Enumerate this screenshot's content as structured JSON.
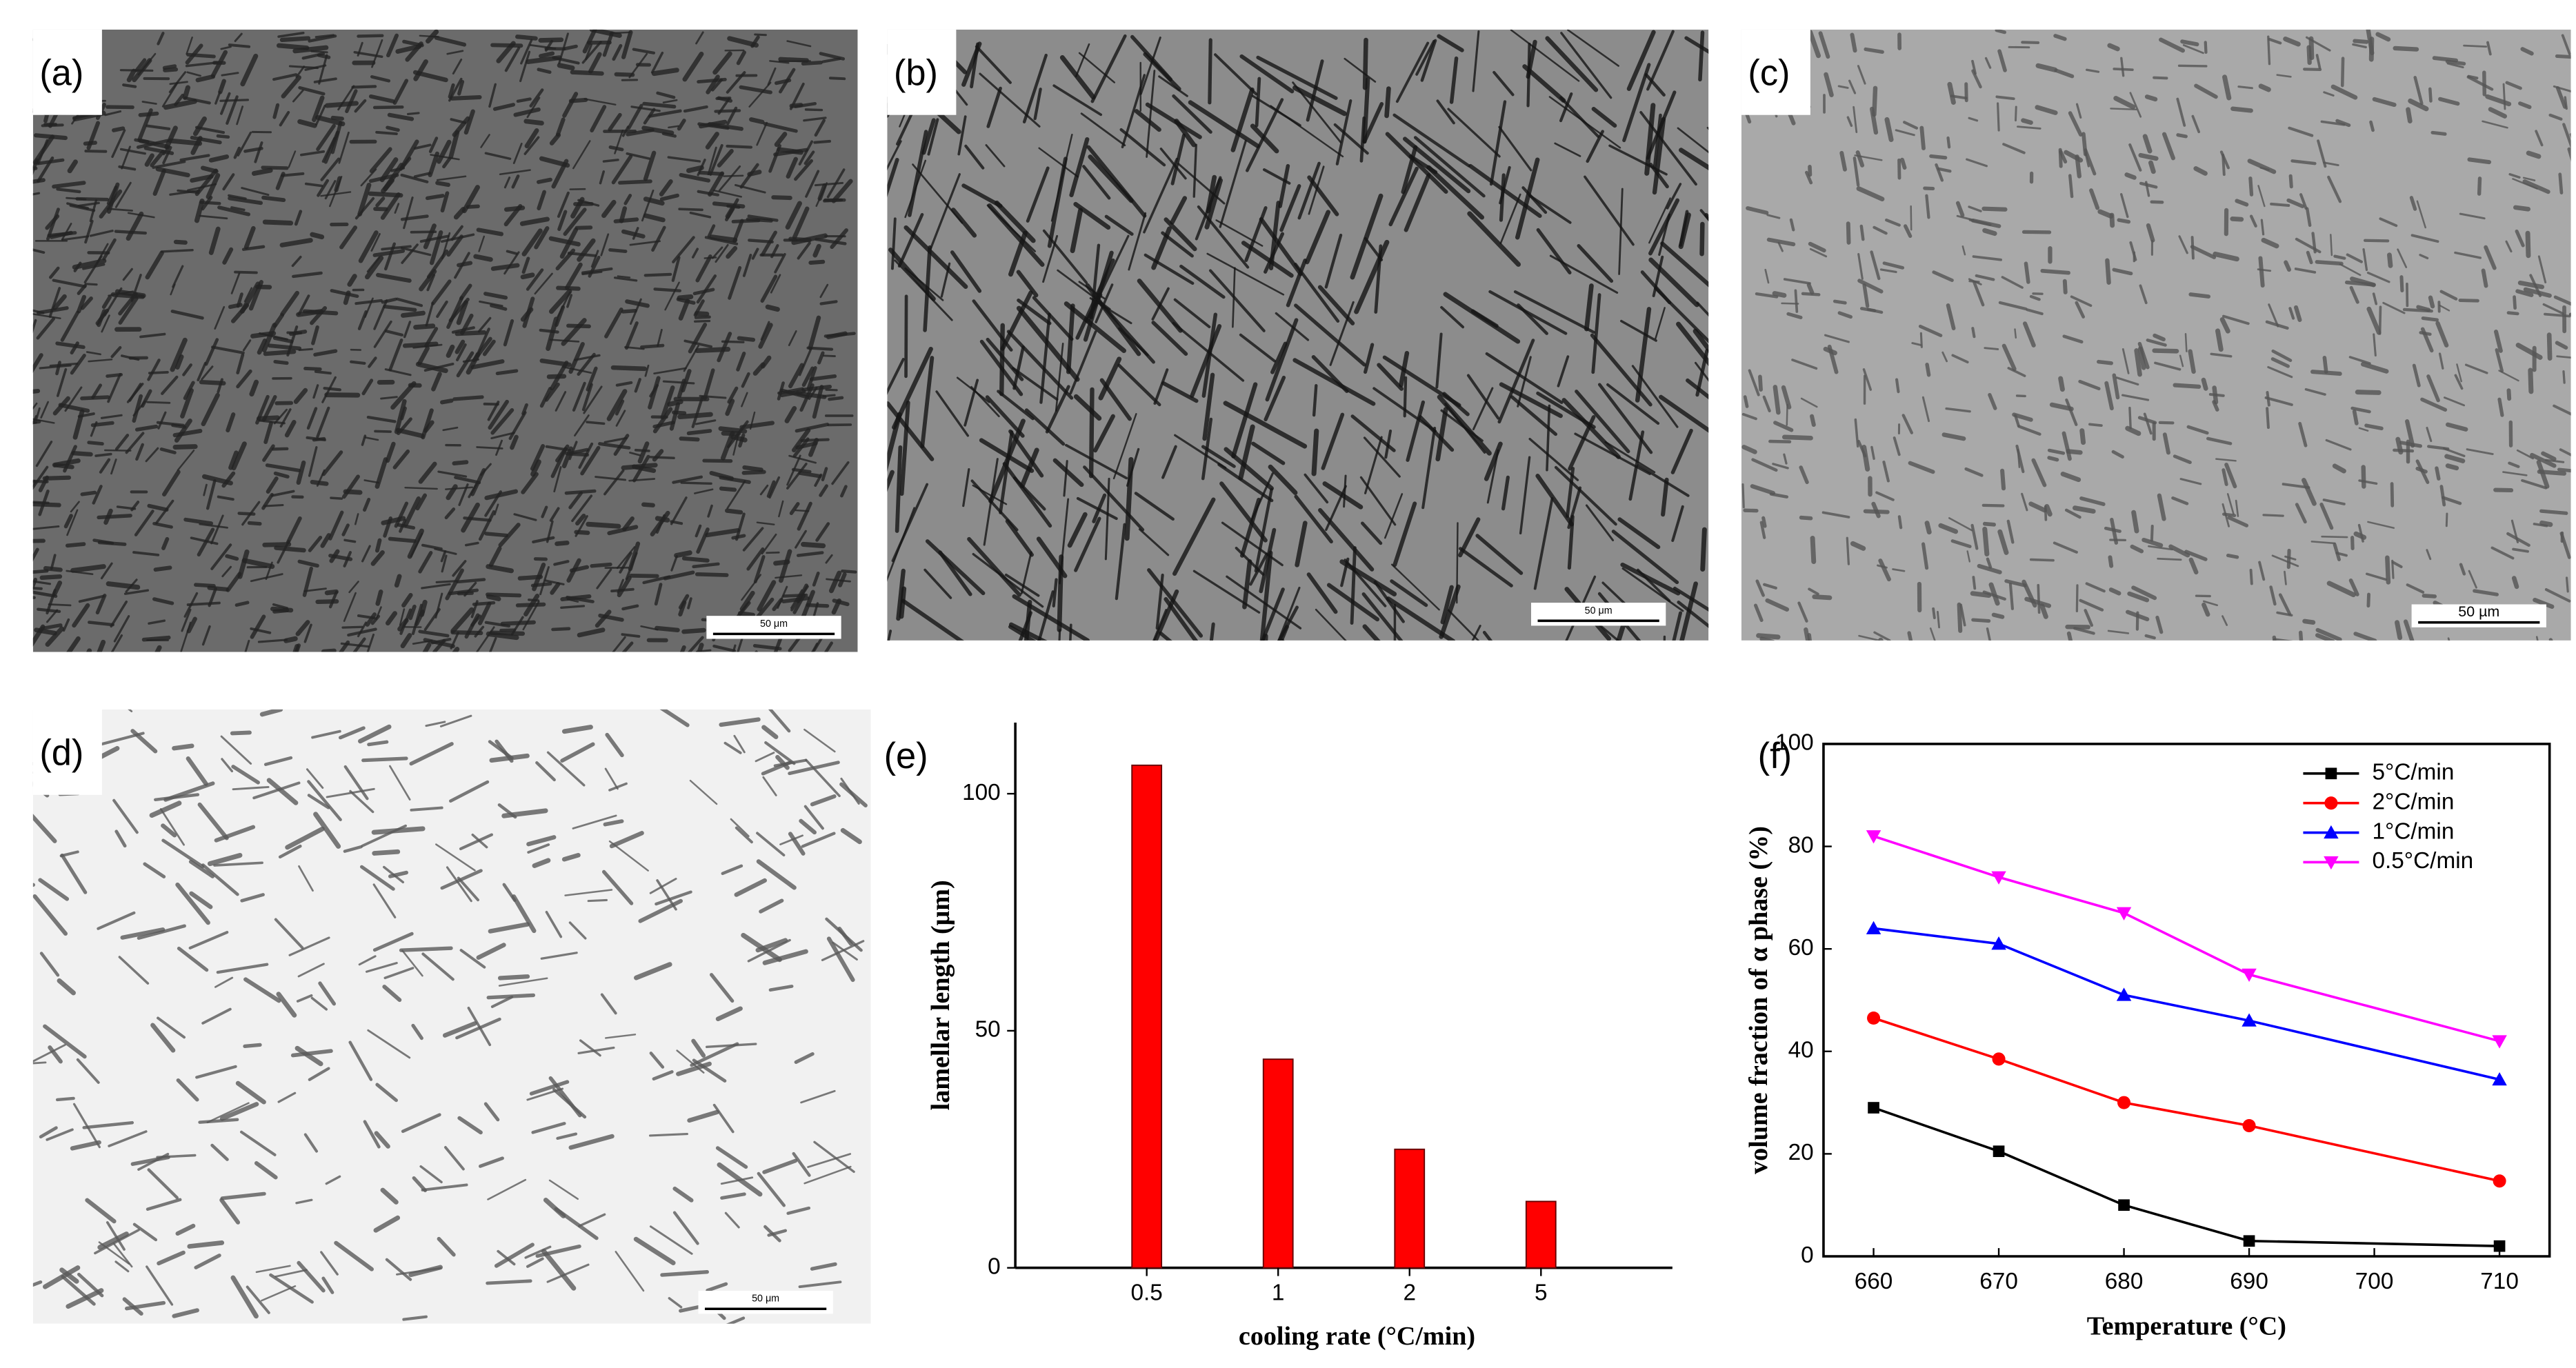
{
  "micrographs": [
    {
      "label": "(a)",
      "scale_bar": "50 μm"
    },
    {
      "label": "(b)",
      "scale_bar": "50 μm"
    },
    {
      "label": "(c)",
      "scale_bar": "50 µm"
    },
    {
      "label": "(d)",
      "scale_bar": "50 μm"
    }
  ],
  "chart_data": [
    {
      "type": "bar",
      "label": "(e)",
      "x_label": "cooling rate (°C/min)",
      "y_label": "lamellar length (μm)",
      "categories": [
        "0.5",
        "1",
        "2",
        "5"
      ],
      "values": [
        106,
        44,
        25,
        14
      ],
      "color": "#ff0000",
      "ylim": [
        0,
        115
      ],
      "yticks": [
        0,
        50,
        100
      ]
    },
    {
      "type": "line",
      "label": "(f)",
      "x_label": "Temperature (°C)",
      "y_label": "volume fraction of α  phase (%)",
      "x": [
        660,
        670,
        680,
        690,
        710
      ],
      "xlim": [
        656,
        714
      ],
      "xticks": [
        660,
        670,
        680,
        690,
        700,
        710
      ],
      "ylim": [
        0,
        100
      ],
      "yticks": [
        0,
        20,
        40,
        60,
        80,
        100
      ],
      "legend": "upper right",
      "series": [
        {
          "name": "5°C/min",
          "color": "#000000",
          "marker": "square",
          "values": [
            29,
            20.5,
            10,
            3,
            2
          ]
        },
        {
          "name": "2°C/min",
          "color": "#ff0000",
          "marker": "circle",
          "values": [
            46.5,
            38.5,
            30,
            25.5,
            14.7
          ]
        },
        {
          "name": "1°C/min",
          "color": "#0000ff",
          "marker": "triangle-up",
          "values": [
            64,
            61,
            51,
            46,
            34.5
          ]
        },
        {
          "name": "0.5°C/min",
          "color": "#ff00ff",
          "marker": "triangle-down",
          "values": [
            82,
            74,
            67,
            55,
            42
          ]
        }
      ]
    }
  ]
}
